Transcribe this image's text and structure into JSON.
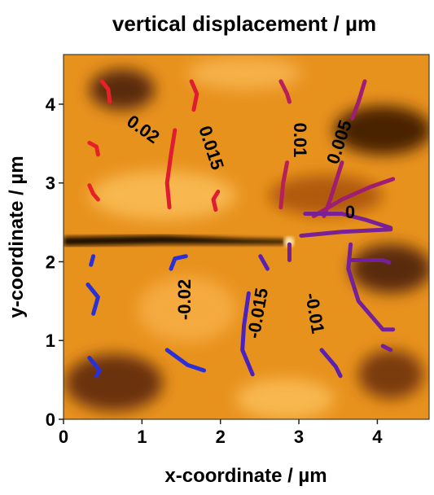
{
  "chart_data": {
    "type": "contour",
    "title": "vertical displacement / µm",
    "xlabel": "x-coordinate / µm",
    "ylabel": "y-coordinate / µm",
    "xlim": [
      0,
      4.66
    ],
    "ylim": [
      0,
      4.63
    ],
    "xticks": [
      0,
      1,
      2,
      3,
      4
    ],
    "yticks": [
      0,
      1,
      2,
      3,
      4
    ],
    "contours": [
      {
        "level": 0.02,
        "color": "#e8202a",
        "x": [
          0.49,
          0.57,
          0.59,
          null,
          0.33,
          0.42,
          0.44,
          null,
          0.33,
          0.38,
          0.44
        ],
        "y": [
          4.29,
          4.19,
          4.03,
          null,
          3.51,
          3.46,
          3.36,
          null,
          2.97,
          2.86,
          2.79
        ]
      },
      {
        "level": 0.015,
        "color": "#e01c30",
        "x": [
          1.63,
          1.7,
          1.66,
          null,
          1.42,
          1.37,
          1.32,
          1.35,
          null,
          1.97,
          1.91,
          1.94
        ],
        "y": [
          4.29,
          4.13,
          3.93,
          null,
          3.67,
          3.36,
          3.0,
          2.69,
          null,
          2.89,
          2.79,
          2.66
        ]
      },
      {
        "level": 0.01,
        "color": "#b8205a",
        "x": [
          2.77,
          2.85,
          2.88,
          null,
          2.85,
          2.8,
          2.77
        ],
        "y": [
          4.29,
          4.13,
          4.03,
          null,
          3.26,
          3.0,
          2.69
        ]
      },
      {
        "level": 0.005,
        "color": "#a01e70",
        "x": [
          3.84,
          3.76,
          3.68,
          null,
          3.55,
          3.4,
          3.32,
          null,
          4.2,
          3.91,
          3.55,
          3.19
        ],
        "y": [
          4.29,
          4.03,
          3.82,
          null,
          3.26,
          2.79,
          2.58,
          null,
          3.05,
          2.95,
          2.79,
          2.58
        ]
      },
      {
        "level": 0,
        "color": "#7a2096",
        "x": [
          3.08,
          3.55,
          3.86,
          4.17,
          null,
          3.03,
          3.55,
          4.17
        ],
        "y": [
          2.61,
          2.61,
          2.53,
          2.43,
          null,
          2.33,
          2.38,
          2.41
        ]
      },
      {
        "color": "#74209a",
        "x": [
          2.88,
          2.88,
          null,
          3.66,
          3.63,
          3.76,
          4.07,
          4.2,
          null,
          4.07,
          4.17,
          null,
          3.66,
          4.07,
          4.15
        ],
        "y": [
          2.22,
          2.02,
          null,
          2.22,
          1.91,
          1.5,
          1.14,
          1.14,
          null,
          0.93,
          0.88,
          null,
          2.02,
          2.02,
          1.99
        ]
      },
      {
        "level": -0.01,
        "color": "#5a20b0",
        "x": [
          2.51,
          2.6,
          null,
          3.29,
          3.47,
          3.53
        ],
        "y": [
          2.07,
          1.91,
          null,
          0.88,
          0.67,
          0.55
        ]
      },
      {
        "level": -0.015,
        "color": "#4a22c0",
        "x": [
          2.36,
          2.3,
          2.28,
          2.41
        ],
        "y": [
          1.6,
          1.19,
          0.88,
          0.57
        ]
      },
      {
        "level": -0.02,
        "color": "#2a30d8",
        "x": [
          0.38,
          0.35,
          null,
          0.31,
          0.44,
          0.38,
          null,
          0.33,
          0.46,
          0.42,
          null,
          1.37,
          1.42,
          1.56,
          null,
          1.32,
          1.58,
          1.79
        ],
        "y": [
          2.07,
          1.96,
          null,
          1.71,
          1.55,
          1.34,
          null,
          0.78,
          0.62,
          0.55,
          null,
          1.91,
          2.04,
          2.07,
          null,
          0.88,
          0.69,
          0.62
        ]
      }
    ]
  }
}
